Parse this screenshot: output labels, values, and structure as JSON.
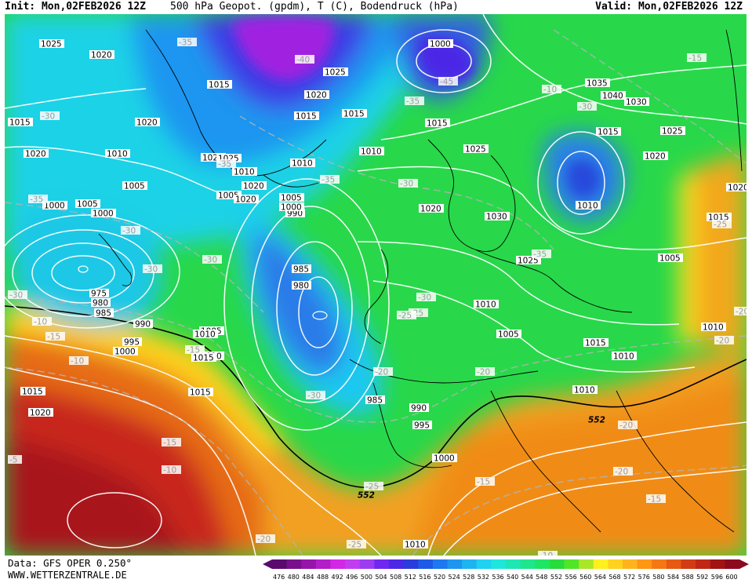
{
  "header": {
    "init": "Init: Mon,02FEB2026 12Z",
    "title": "500 hPa Geopot. (gpdm), T (C), Bodendruck (hPa)",
    "valid": "Valid: Mon,02FEB2026 12Z"
  },
  "footer": {
    "data_source": "Data: GFS OPER 0.250°",
    "website": "WWW.WETTERZENTRALE.DE"
  },
  "legend": {
    "ticks": [
      "476",
      "480",
      "484",
      "488",
      "492",
      "496",
      "500",
      "504",
      "508",
      "512",
      "516",
      "520",
      "524",
      "528",
      "532",
      "536",
      "540",
      "544",
      "548",
      "552",
      "556",
      "560",
      "564",
      "568",
      "572",
      "576",
      "580",
      "584",
      "588",
      "592",
      "596",
      "600"
    ],
    "colors": [
      "#5a0a6e",
      "#78108c",
      "#9614aa",
      "#b41ec8",
      "#d228e6",
      "#c23cf0",
      "#9c3cf0",
      "#7028f0",
      "#4c28e6",
      "#2c3cdc",
      "#1e5ae6",
      "#1e78f0",
      "#1e96f0",
      "#1eb4f0",
      "#1ed2f0",
      "#1ee6dc",
      "#1ee6b4",
      "#1ee68c",
      "#1ee664",
      "#28dc3c",
      "#50e628",
      "#aae628",
      "#fff01e",
      "#ffd21e",
      "#ffb41e",
      "#ff9614",
      "#f57814",
      "#e65a14",
      "#d23c14",
      "#be2814",
      "#a01414",
      "#8c0a1e"
    ]
  },
  "pressure_labels": [
    "1025",
    "1020",
    "1015",
    "1020",
    "1015",
    "1020",
    "1010",
    "1005",
    "1000",
    "995",
    "990",
    "1025",
    "1020",
    "1015",
    "1015",
    "1010",
    "1000",
    "1005",
    "1000",
    "1035",
    "1040",
    "1030",
    "1025",
    "1015",
    "1025",
    "1020",
    "1030",
    "1020",
    "1015",
    "1025",
    "1010",
    "1010",
    "1005",
    "1010",
    "1005",
    "1015",
    "1010",
    "1010",
    "985",
    "980",
    "985",
    "990",
    "995",
    "1000",
    "975",
    "980",
    "985",
    "990",
    "995",
    "1000",
    "1010",
    "1015",
    "1020",
    "1005",
    "1010",
    "1015",
    "1025",
    "1025",
    "1020",
    "1010",
    "1020",
    "1015",
    "1005",
    "1010",
    "1020",
    "1005",
    "1000",
    "1010",
    "1015"
  ],
  "temperature_labels": [
    "-35",
    "-40",
    "-45",
    "-35",
    "-35",
    "-30",
    "-30",
    "-35",
    "-30",
    "-35",
    "-30",
    "-30",
    "-30",
    "-30",
    "-25",
    "-20",
    "-20",
    "-20",
    "-25",
    "-30",
    "-25",
    "-20",
    "-15",
    "-15",
    "-10",
    "-5",
    "-10",
    "-15",
    "-20",
    "-25",
    "-20",
    "-25",
    "-20",
    "-15",
    "-10",
    "-20",
    "-15",
    "-10",
    "-15",
    "-10",
    "-30",
    "-35"
  ],
  "height_labels": [
    "552",
    "552"
  ]
}
